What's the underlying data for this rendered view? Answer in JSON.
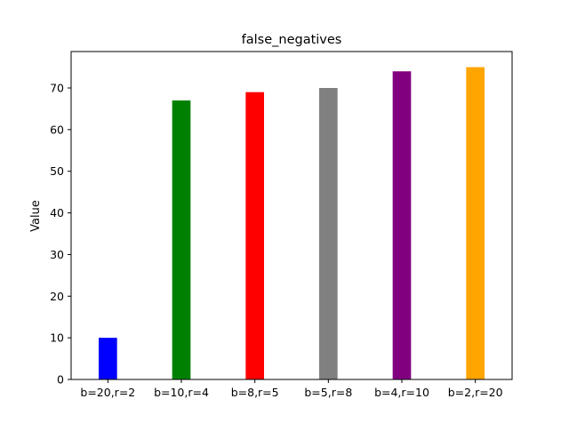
{
  "chart_data": {
    "type": "bar",
    "title": "false_negatives",
    "xlabel": "",
    "ylabel": "Value",
    "categories": [
      "b=20,r=2",
      "b=10,r=4",
      "b=8,r=5",
      "b=5,r=8",
      "b=4,r=10",
      "b=2,r=20"
    ],
    "values": [
      10,
      67,
      69,
      70,
      74,
      75
    ],
    "colors": [
      "#0000ff",
      "#008000",
      "#ff0000",
      "#808080",
      "#800080",
      "#ffa500"
    ],
    "ylim": [
      0,
      78.75
    ],
    "yticks": [
      0,
      10,
      20,
      30,
      40,
      50,
      60,
      70
    ],
    "grid": false,
    "legend": "none"
  }
}
